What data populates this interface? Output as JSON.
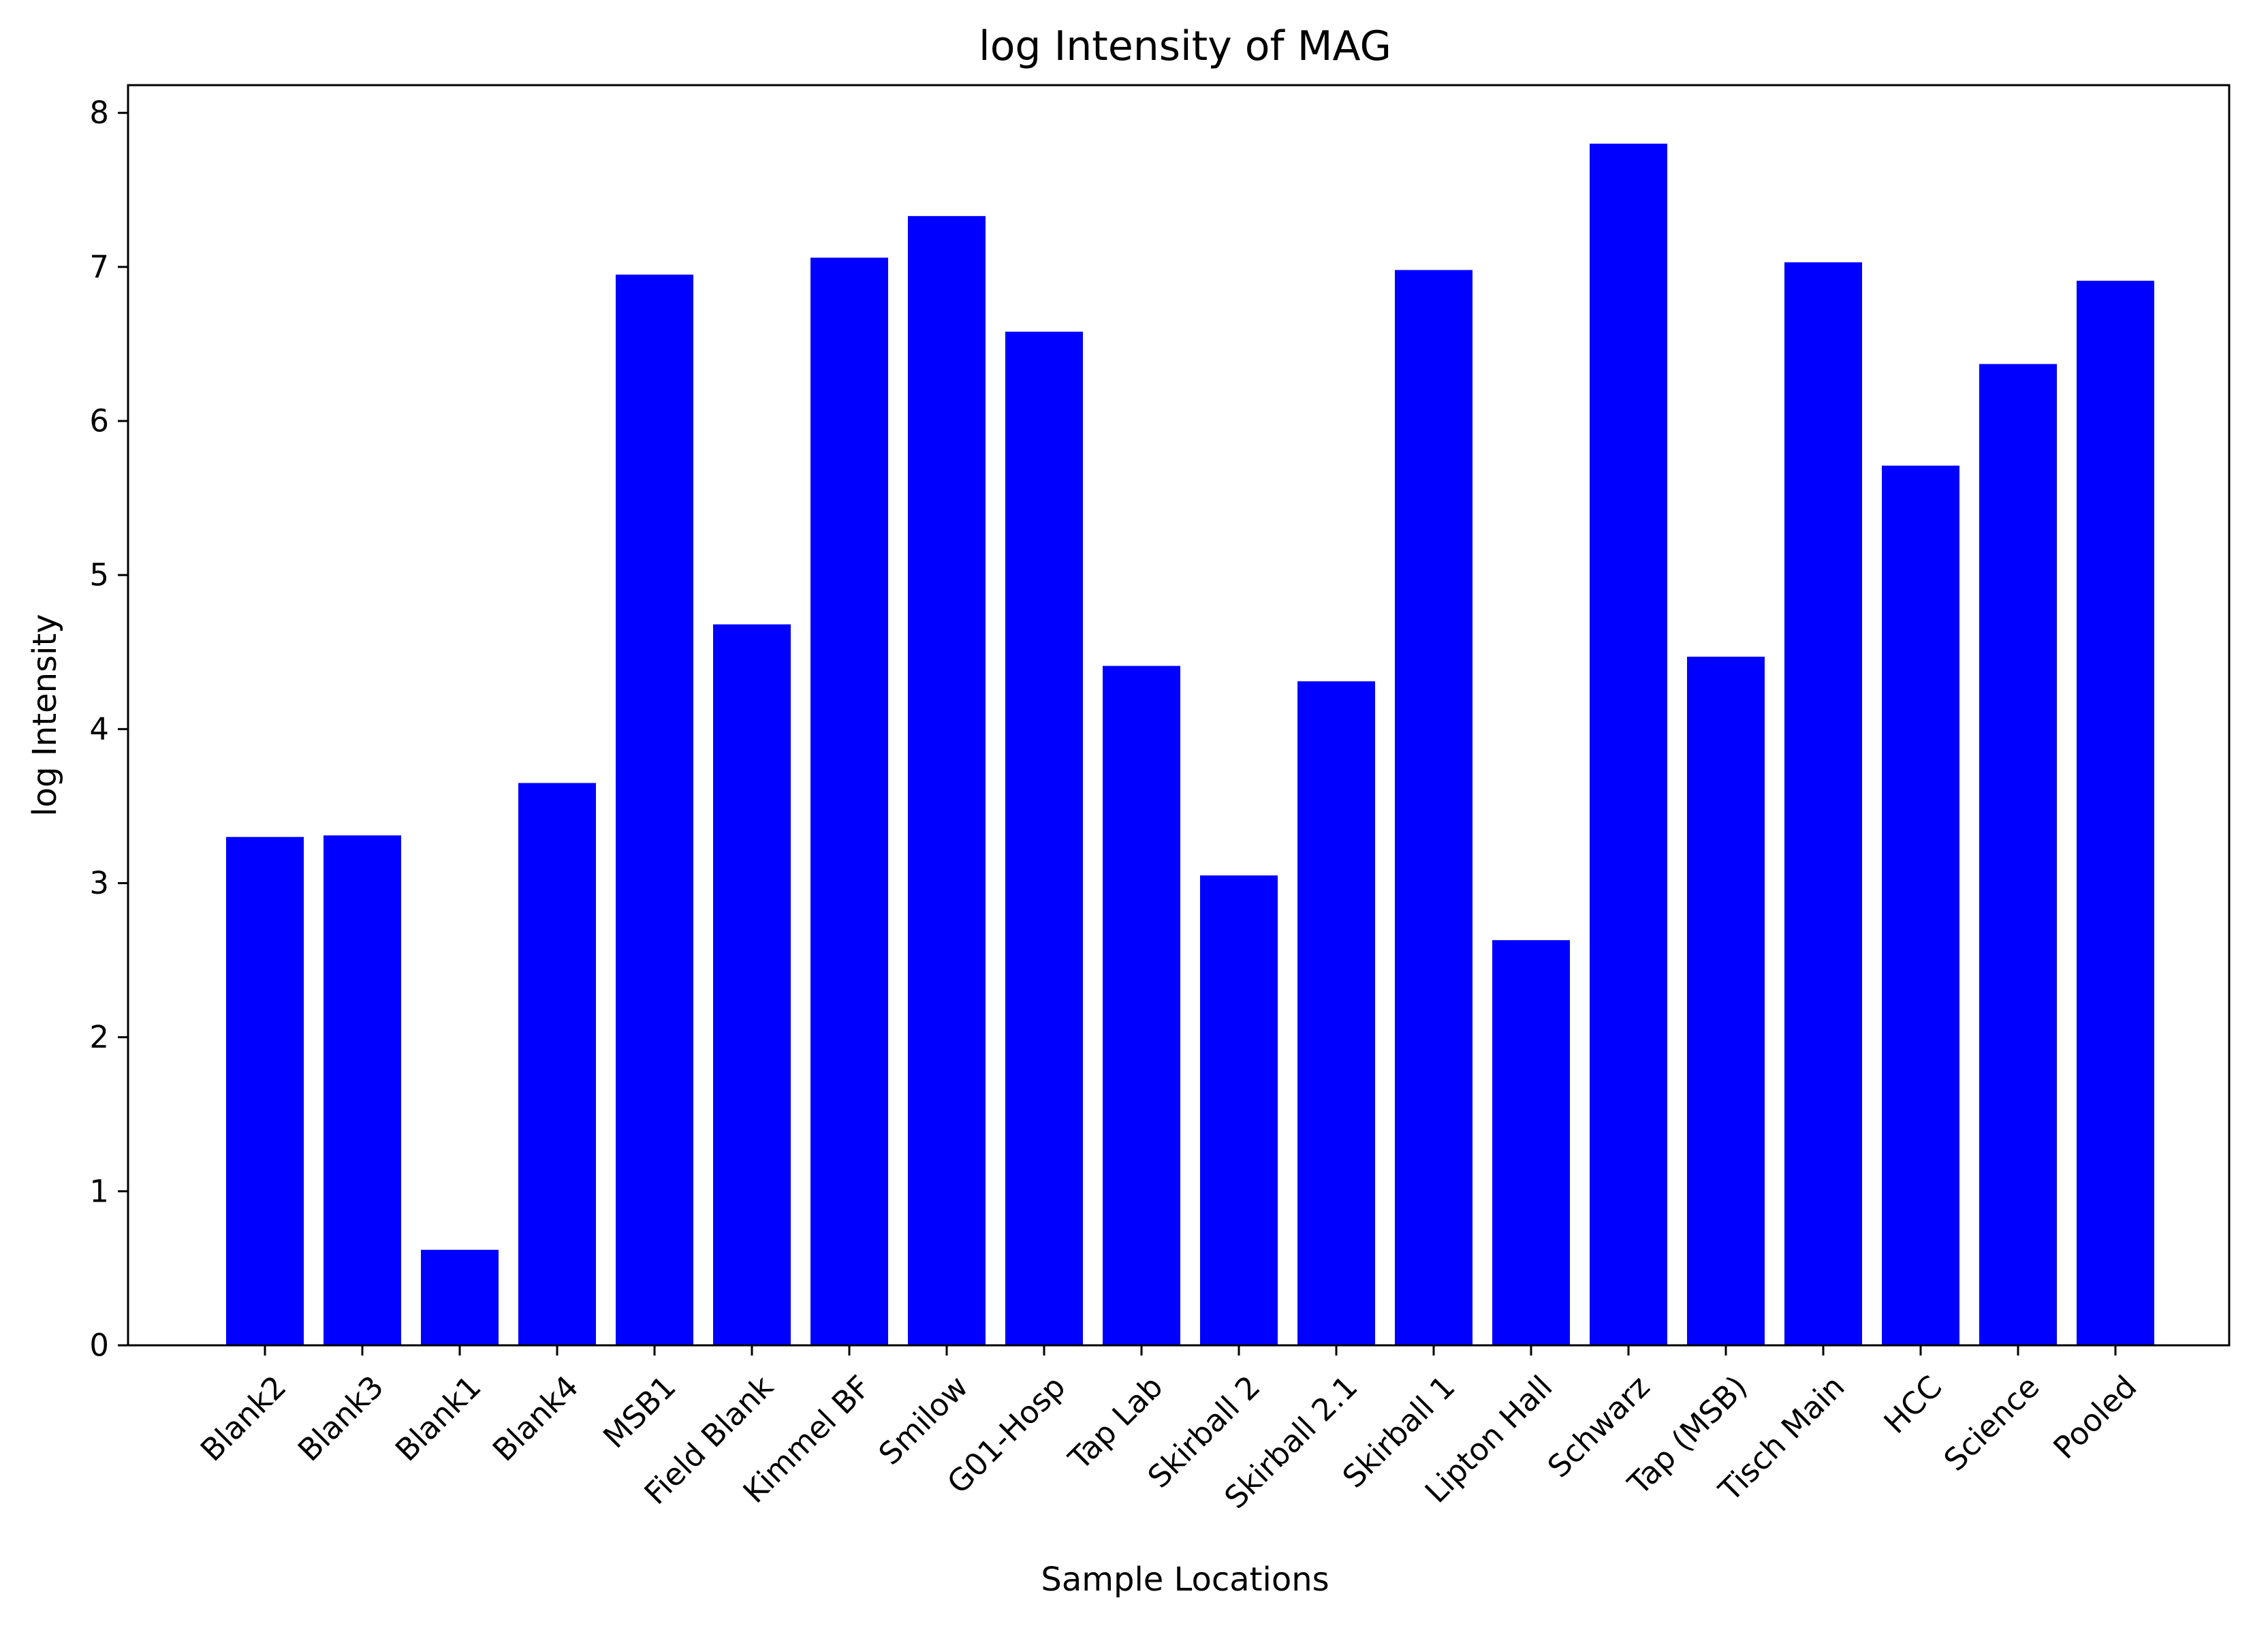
{
  "chart_data": {
    "type": "bar",
    "title": "log Intensity of MAG",
    "xlabel": "Sample Locations",
    "ylabel": "log Intensity",
    "ylim": [
      0,
      8.18
    ],
    "yticks": [
      0,
      1,
      2,
      3,
      4,
      5,
      6,
      7,
      8
    ],
    "grid": false,
    "bar_color": "#0000ff",
    "categories": [
      "Blank2",
      "Blank3",
      "Blank1",
      "Blank4",
      "MSB1",
      "Field Blank",
      "Kimmel BF",
      "Smilow",
      "G01-Hosp",
      "Tap Lab",
      "Skirball 2",
      "Skirball 2.1",
      "Skirball 1",
      "Lipton Hall",
      "Schwarz",
      "Tap (MSB)",
      "Tisch Main",
      "HCC",
      "Science",
      "Pooled"
    ],
    "values": [
      3.3,
      3.31,
      0.62,
      3.65,
      6.95,
      4.68,
      7.06,
      7.33,
      6.58,
      4.41,
      3.05,
      4.31,
      6.98,
      2.63,
      7.8,
      4.47,
      7.03,
      5.71,
      6.37,
      6.91
    ]
  }
}
